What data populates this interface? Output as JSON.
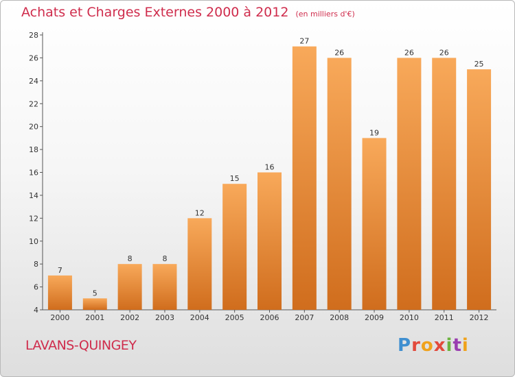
{
  "header": {
    "title": "Achats et Charges Externes 2000 à 2012",
    "subtitle": "(en milliers d'€)"
  },
  "footer": {
    "town": "LAVANS-QUINGEY",
    "logo_text": "Proxiti"
  },
  "colors": {
    "bar_top": "#f8a95a",
    "bar_bottom": "#d06d1d",
    "accent": "#cf2c4c"
  },
  "chart_data": {
    "type": "bar",
    "title": "Achats et Charges Externes 2000 à 2012",
    "subtitle": "(en milliers d'€)",
    "categories": [
      "2000",
      "2001",
      "2002",
      "2003",
      "2004",
      "2005",
      "2006",
      "2007",
      "2008",
      "2009",
      "2010",
      "2011",
      "2012"
    ],
    "values": [
      7,
      5,
      8,
      8,
      12,
      15,
      16,
      27,
      26,
      19,
      26,
      26,
      25
    ],
    "ylim": [
      4,
      28
    ],
    "yticks": [
      4,
      6,
      8,
      10,
      12,
      14,
      16,
      18,
      20,
      22,
      24,
      26,
      28
    ],
    "grid": false,
    "xlabel": "",
    "ylabel": ""
  }
}
